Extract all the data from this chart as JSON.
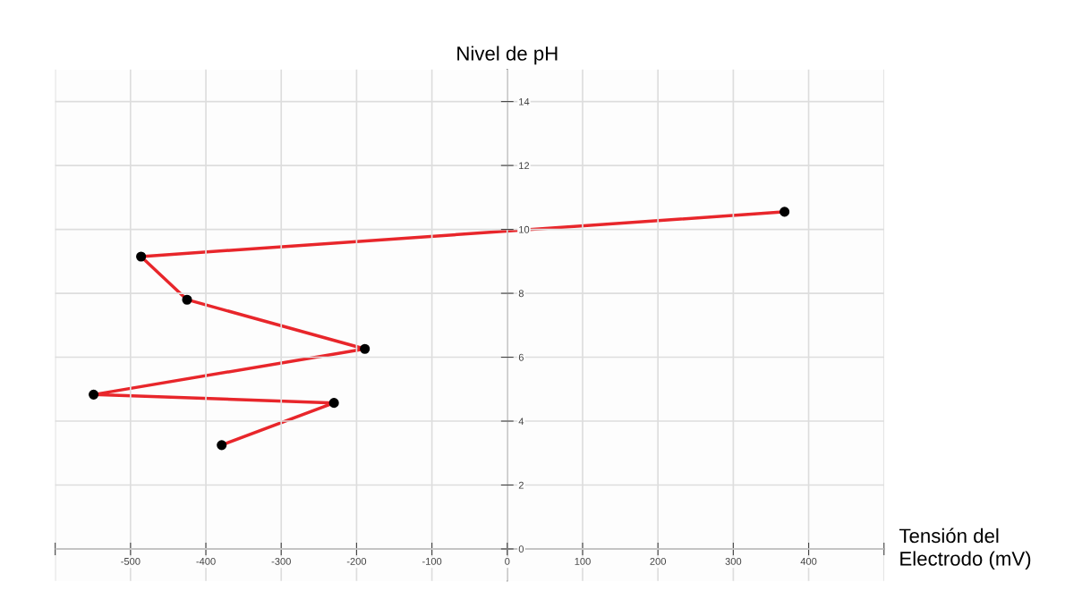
{
  "chart_data": {
    "type": "line",
    "ylabel": "Nivel de pH",
    "xlabel": "Tensión del\nElectrodo (mV)",
    "x": [
      -379,
      -230,
      -549,
      -189,
      -425,
      -486,
      368
    ],
    "series": [
      {
        "color": "#e8262b",
        "values": [
          3.25,
          4.57,
          4.83,
          6.26,
          7.8,
          9.15,
          10.55
        ]
      }
    ],
    "xlim": [
      -600,
      500
    ],
    "ylim": [
      -1,
      15
    ],
    "xticks": [
      {
        "value": -600,
        "label": null
      },
      -500,
      -400,
      -300,
      -200,
      -100,
      0,
      100,
      200,
      300,
      400,
      {
        "value": 500,
        "label": null
      }
    ],
    "yticks": [
      0,
      2,
      4,
      6,
      8,
      10,
      12,
      14
    ],
    "grid": true,
    "marker": "circle",
    "line_style": "solid"
  }
}
